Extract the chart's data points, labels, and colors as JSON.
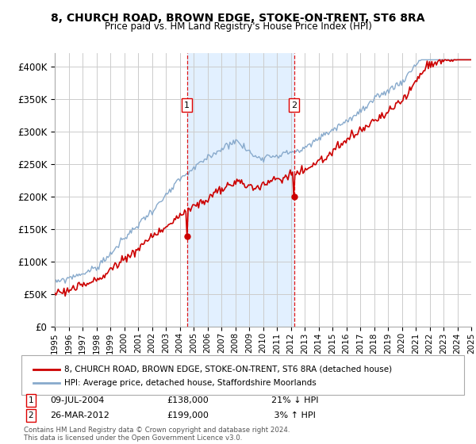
{
  "title1": "8, CHURCH ROAD, BROWN EDGE, STOKE-ON-TRENT, ST6 8RA",
  "title2": "Price paid vs. HM Land Registry's House Price Index (HPI)",
  "yticks": [
    0,
    50000,
    100000,
    150000,
    200000,
    250000,
    300000,
    350000,
    400000
  ],
  "ytick_labels": [
    "£0",
    "£50K",
    "£100K",
    "£150K",
    "£200K",
    "£250K",
    "£300K",
    "£350K",
    "£400K"
  ],
  "xmin_year": 1995,
  "xmax_year": 2025,
  "sale1_date": 2004.52,
  "sale1_price": 138000,
  "sale1_label": "1",
  "sale2_date": 2012.23,
  "sale2_price": 199000,
  "sale2_label": "2",
  "highlight_xmin": 2004.52,
  "highlight_xmax": 2012.23,
  "line_color_property": "#cc0000",
  "line_color_hpi": "#88aacc",
  "background_color": "#ffffff",
  "grid_color": "#cccccc",
  "legend_line1": "8, CHURCH ROAD, BROWN EDGE, STOKE-ON-TRENT, ST6 8RA (detached house)",
  "legend_line2": "HPI: Average price, detached house, Staffordshire Moorlands",
  "footnote": "Contains HM Land Registry data © Crown copyright and database right 2024.\nThis data is licensed under the Open Government Licence v3.0.",
  "xtick_years": [
    1995,
    1996,
    1997,
    1998,
    1999,
    2000,
    2001,
    2002,
    2003,
    2004,
    2005,
    2006,
    2007,
    2008,
    2009,
    2010,
    2011,
    2012,
    2013,
    2014,
    2015,
    2016,
    2017,
    2018,
    2019,
    2020,
    2021,
    2022,
    2023,
    2024,
    2025
  ]
}
